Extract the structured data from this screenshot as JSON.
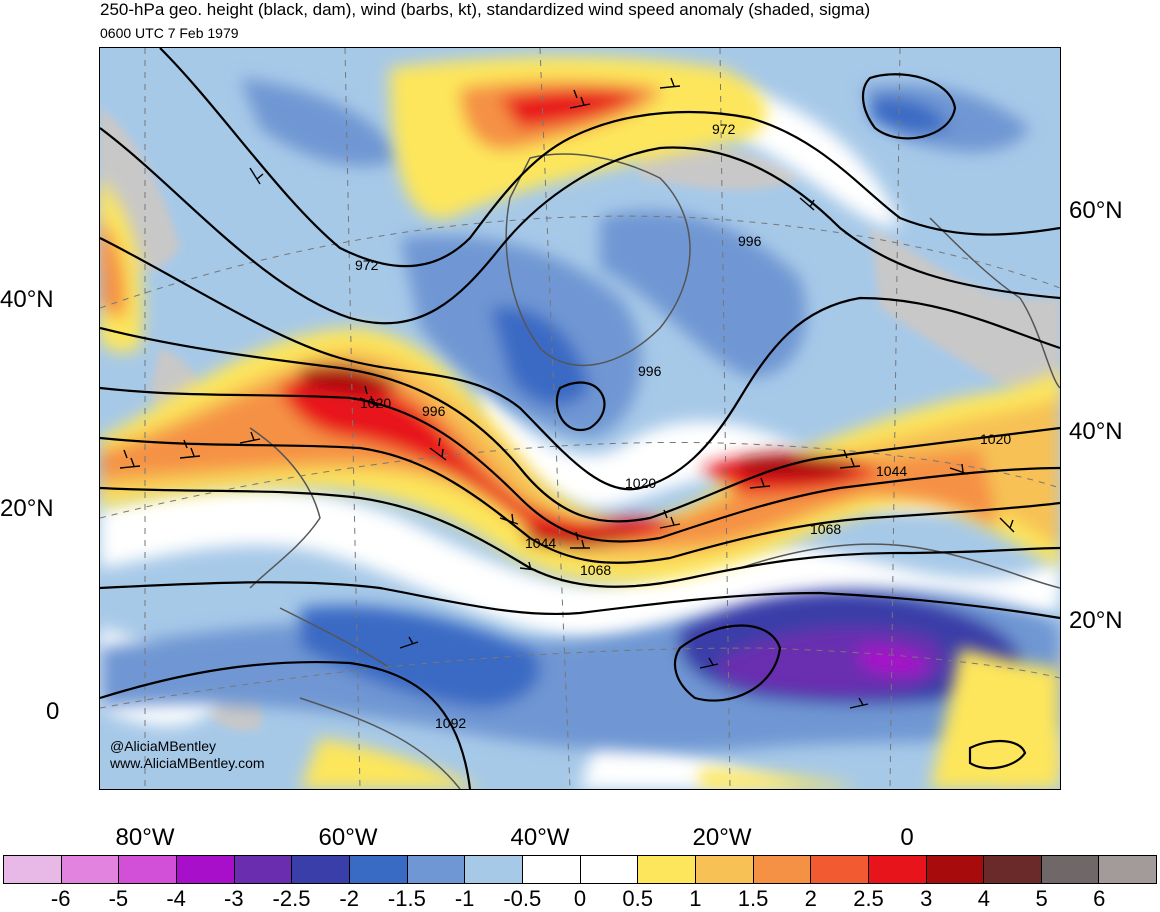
{
  "title": "250-hPa geo. height (black, dam), wind (barbs, kt), standardized wind speed anomaly (shaded, sigma)",
  "subtitle": "0600 UTC 7 Feb 1979",
  "credits": {
    "handle": "@AliciaMBentley",
    "website": "www.AliciaMBentley.com"
  },
  "lat_labels_left": [
    "40°N",
    "20°N",
    "0"
  ],
  "lat_labels_right": [
    "60°N",
    "40°N",
    "20°N"
  ],
  "lon_labels": [
    "80°W",
    "60°W",
    "40°W",
    "20°W",
    "0"
  ],
  "contour_labels": [
    "972",
    "972",
    "996",
    "996",
    "996",
    "1020",
    "1020",
    "1020",
    "1044",
    "1044",
    "1068",
    "1068",
    "1092"
  ],
  "colorbar": {
    "colors": [
      "#e8b9e6",
      "#e283e0",
      "#d24fd8",
      "#a80fcb",
      "#6a2db0",
      "#3a3ea8",
      "#3a6bc4",
      "#6f97d3",
      "#a7c9e8",
      "#ffffff",
      "#ffffff",
      "#fde65c",
      "#f7c155",
      "#f59145",
      "#f25a32",
      "#e8141b",
      "#a80b0b",
      "#6b2a2a",
      "#706868",
      "#a39a9a"
    ],
    "tick_labels": [
      "-6",
      "-5",
      "-4",
      "-3",
      "-2.5",
      "-2",
      "-1.5",
      "-1",
      "-0.5",
      "0",
      "0.5",
      "1",
      "1.5",
      "2",
      "2.5",
      "3",
      "4",
      "5",
      "6"
    ]
  }
}
